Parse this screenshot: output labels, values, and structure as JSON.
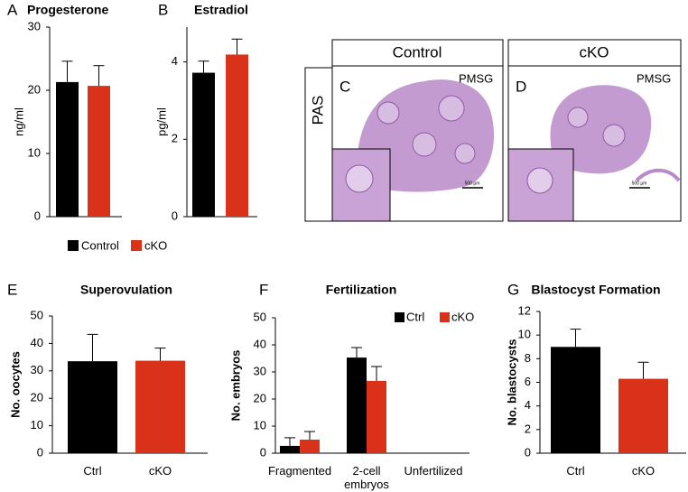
{
  "chart_data": [
    {
      "type": "bar",
      "label": "A",
      "title": "Progesterone",
      "y_label": "ng/ml",
      "categories": [
        null
      ],
      "series": [
        {
          "name": "Control",
          "color": "#000000",
          "values": [
            21.3
          ],
          "errors": [
            3.3
          ]
        },
        {
          "name": "cKO",
          "color": "#d9311a",
          "values": [
            20.7
          ],
          "errors": [
            3.2
          ]
        }
      ],
      "ylim": [
        0,
        30
      ],
      "yticks": [
        0,
        10,
        20,
        30
      ]
    },
    {
      "type": "bar",
      "label": "B",
      "title": "Estradiol",
      "y_label": "pg/ml",
      "categories": [
        null
      ],
      "series": [
        {
          "color": "#000000",
          "values": [
            3.72
          ],
          "errors": [
            0.3
          ]
        },
        {
          "color": "#d9311a",
          "values": [
            4.19
          ],
          "errors": [
            0.4
          ]
        }
      ],
      "ylim": [
        0,
        4.9
      ],
      "yticks": [
        0,
        2,
        4
      ]
    },
    {
      "type": "bar",
      "label": "E",
      "title": "Superovulation",
      "y_label": "No. oocytes",
      "categories": [
        "Ctrl",
        "cKO"
      ],
      "values": [
        33.5,
        33.7
      ],
      "errors": [
        9.8,
        4.6
      ],
      "colors": [
        "#000000",
        "#d9311a"
      ],
      "ylim": [
        0,
        50
      ],
      "yticks": [
        0,
        10,
        20,
        30,
        40,
        50
      ]
    },
    {
      "type": "bar",
      "label": "F",
      "title": "Fertilization",
      "y_label": "No. embryos",
      "categories": [
        "Fragmented",
        "2-cell embryos",
        "Unfertilized"
      ],
      "series": [
        {
          "name": "Ctrl",
          "color": "#000000",
          "values": [
            2.7,
            35.3,
            0
          ],
          "errors": [
            3,
            3.7,
            null
          ]
        },
        {
          "name": "cKO",
          "color": "#d9311a",
          "values": [
            5,
            26.7,
            0
          ],
          "errors": [
            3,
            5.3,
            null
          ]
        }
      ],
      "ylim": [
        0,
        50
      ],
      "yticks": [
        0,
        10,
        20,
        30,
        40,
        50
      ],
      "legend": "upper right"
    },
    {
      "type": "bar",
      "label": "G",
      "title": "Blastocyst Formation",
      "y_label": "No. blastocysts",
      "categories": [
        "Ctrl",
        "cKO"
      ],
      "values": [
        9.0,
        6.3
      ],
      "errors": [
        1.5,
        1.4
      ],
      "colors": [
        "#000000",
        "#d9311a"
      ],
      "ylim": [
        0,
        12
      ],
      "yticks": [
        0,
        2,
        4,
        6,
        8,
        10,
        12
      ]
    }
  ],
  "micrographs": {
    "headers": [
      "Control",
      "cKO"
    ],
    "stain": "PAS",
    "panels": [
      {
        "letter": "C",
        "condition": "PMSG",
        "scale": "500 µm"
      },
      {
        "letter": "D",
        "condition": "PMSG",
        "scale": "500 µm"
      }
    ]
  }
}
